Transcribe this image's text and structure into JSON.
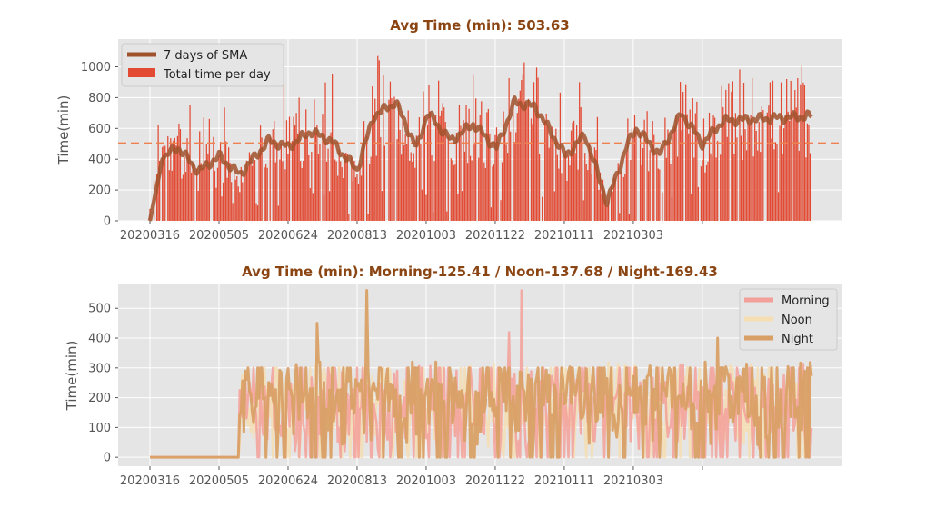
{
  "colors": {
    "title": "#8B4513",
    "panel_bg": "#E5E5E5",
    "grid": "#FFFFFF",
    "bar": "#E24A33",
    "sma": "#A0522D",
    "avg_line": "#F08050",
    "morning": "#F4A09A",
    "noon": "#F5DEB3",
    "night": "#D9A066"
  },
  "chart_data": [
    {
      "type": "bar",
      "title": "Avg Time (min): 503.63",
      "xlabel": "",
      "ylabel": "Time(min)",
      "ylim": [
        0,
        1180
      ],
      "yticks": [
        0,
        200,
        400,
        600,
        800,
        1000
      ],
      "xtick_labels": [
        "20200316",
        "20200505",
        "20200624",
        "20200813",
        "20201003",
        "20201122",
        "20210111",
        "20210303",
        ""
      ],
      "start_date": "2020-03-16",
      "num_days": 480,
      "average": 503.63,
      "grid": true,
      "legend_position": "top-left",
      "series": [
        {
          "name": "7 days of SMA",
          "kind": "line",
          "description": "7-day simple moving average of total time per day"
        },
        {
          "name": "Total time per day",
          "kind": "bar",
          "description": "daily total minutes, roughly 0-1070 with most days between 300 and 700"
        }
      ],
      "sma_key_points": [
        {
          "date": "2020-03-16",
          "value": 0
        },
        {
          "date": "2020-03-25",
          "value": 400
        },
        {
          "date": "2020-04-05",
          "value": 480
        },
        {
          "date": "2020-04-20",
          "value": 320
        },
        {
          "date": "2020-05-05",
          "value": 420
        },
        {
          "date": "2020-05-20",
          "value": 300
        },
        {
          "date": "2020-06-10",
          "value": 520
        },
        {
          "date": "2020-06-24",
          "value": 480
        },
        {
          "date": "2020-07-10",
          "value": 580
        },
        {
          "date": "2020-07-25",
          "value": 520
        },
        {
          "date": "2020-08-13",
          "value": 330
        },
        {
          "date": "2020-08-25",
          "value": 680
        },
        {
          "date": "2020-09-10",
          "value": 770
        },
        {
          "date": "2020-09-25",
          "value": 470
        },
        {
          "date": "2020-10-03",
          "value": 700
        },
        {
          "date": "2020-10-20",
          "value": 520
        },
        {
          "date": "2020-11-05",
          "value": 630
        },
        {
          "date": "2020-11-22",
          "value": 470
        },
        {
          "date": "2020-12-05",
          "value": 770
        },
        {
          "date": "2020-12-20",
          "value": 740
        },
        {
          "date": "2021-01-11",
          "value": 420
        },
        {
          "date": "2021-01-25",
          "value": 560
        },
        {
          "date": "2021-02-10",
          "value": 120
        },
        {
          "date": "2021-02-25",
          "value": 500
        },
        {
          "date": "2021-03-03",
          "value": 600
        },
        {
          "date": "2021-03-20",
          "value": 430
        },
        {
          "date": "2021-04-05",
          "value": 700
        },
        {
          "date": "2021-04-20",
          "value": 500
        },
        {
          "date": "2021-05-05",
          "value": 650
        },
        {
          "date": "2021-07-08",
          "value": 680
        }
      ]
    },
    {
      "type": "line",
      "title": "Avg Time (min): Morning-125.41 / Noon-137.68 / Night-169.43",
      "xlabel": "",
      "ylabel": "Time(min)",
      "ylim": [
        -30,
        580
      ],
      "yticks": [
        0,
        100,
        200,
        300,
        400,
        500
      ],
      "xtick_labels": [
        "20200316",
        "20200505",
        "20200624",
        "20200813",
        "20201003",
        "20201122",
        "20210111",
        "20210303",
        ""
      ],
      "grid": true,
      "legend_position": "top-right",
      "zero_until_date": "2020-05-20",
      "series": [
        {
          "name": "Morning",
          "average": 125.41,
          "peaks": [
            {
              "date": "2020-12-10",
              "value": 560
            },
            {
              "date": "2020-12-01",
              "value": 420
            }
          ]
        },
        {
          "name": "Noon",
          "average": 137.68
        },
        {
          "name": "Night",
          "average": 169.43,
          "peaks": [
            {
              "date": "2020-08-20",
              "value": 560
            },
            {
              "date": "2020-07-15",
              "value": 450
            },
            {
              "date": "2021-05-01",
              "value": 400
            }
          ]
        }
      ]
    }
  ]
}
